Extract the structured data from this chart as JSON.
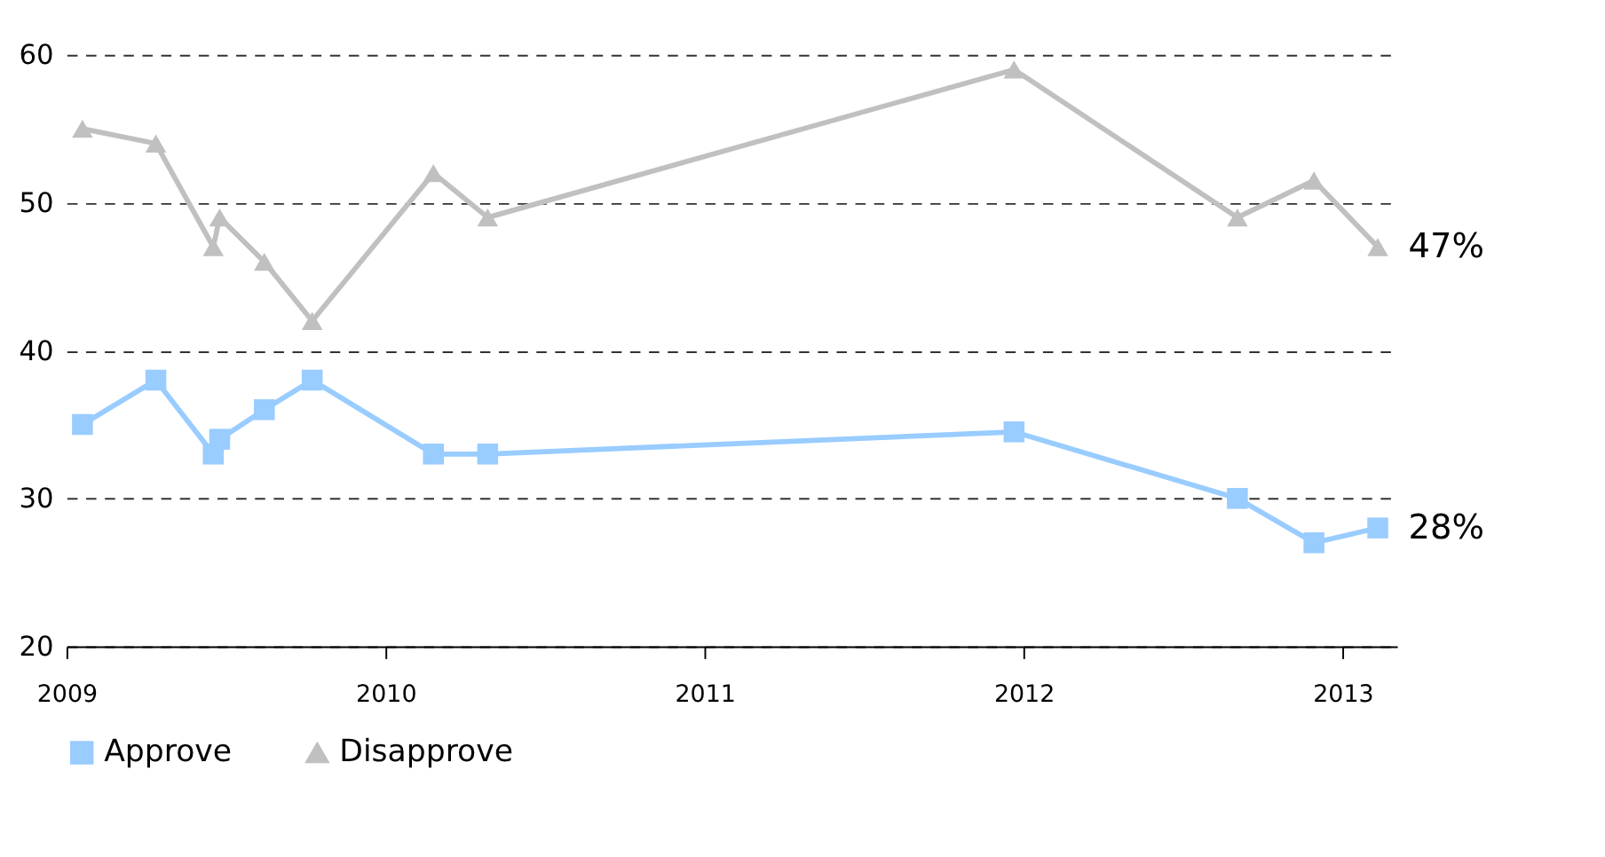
{
  "chart_data": {
    "type": "line",
    "x": [
      2009.05,
      2009.28,
      2009.46,
      2009.48,
      2009.62,
      2009.77,
      2010.15,
      2010.32,
      2011.97,
      2012.67,
      2012.91,
      2013.11
    ],
    "series": [
      {
        "name": "Approve",
        "color": "#99ccff",
        "marker": "square",
        "values": [
          35,
          38,
          33,
          34,
          36,
          38,
          33,
          33,
          34.5,
          30,
          27,
          28
        ]
      },
      {
        "name": "Disapprove",
        "color": "#c0c0c0",
        "marker": "triangle",
        "values": [
          55,
          54,
          47,
          49,
          46,
          42,
          52,
          49,
          59,
          49,
          51.5,
          47
        ]
      }
    ],
    "xlim": [
      2009,
      2013.17
    ],
    "xticks": [
      2009,
      2010,
      2011,
      2012,
      2013
    ],
    "ylim": [
      20,
      60
    ],
    "yticks": [
      20,
      30,
      40,
      50,
      60
    ],
    "grid": "y",
    "legend": "bottom",
    "line_style": "solid",
    "annotations": [
      {
        "text": "47%",
        "x": 2013.11,
        "y": 47
      },
      {
        "text": "28%",
        "x": 2013.11,
        "y": 28
      }
    ]
  }
}
